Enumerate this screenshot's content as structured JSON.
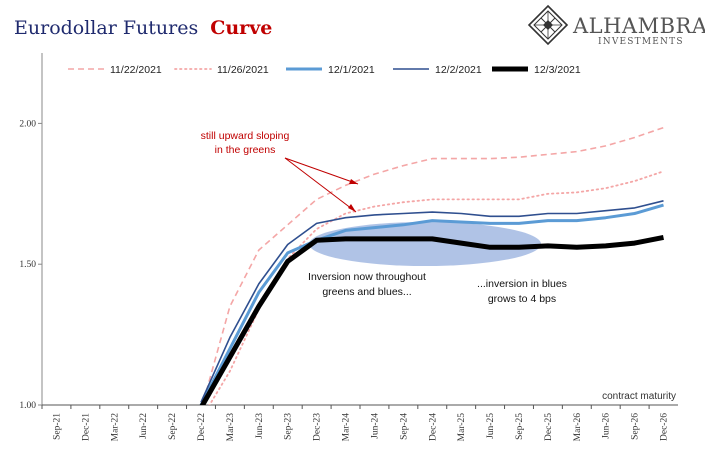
{
  "brand": {
    "name": "ALHAMBRA",
    "tagline": "INVESTMENTS",
    "logo_icon": "diamond-lattice-icon"
  },
  "chart_data": {
    "type": "line",
    "title": "Eurodollar Futures",
    "title_accent": "Curve",
    "xlabel": "contract maturity",
    "ylabel": "",
    "ylim": [
      1.0,
      2.25
    ],
    "yticks": [
      1.0,
      1.5,
      2.0
    ],
    "ytick_labels": [
      "1.00",
      "1.50",
      "2.00"
    ],
    "categories": [
      "Sep-21",
      "Dec-21",
      "Mar-22",
      "Jun-22",
      "Sep-22",
      "Dec-22",
      "Mar-23",
      "Jun-23",
      "Sep-23",
      "Dec-23",
      "Mar-24",
      "Jun-24",
      "Sep-24",
      "Dec-24",
      "Mar-25",
      "Jun-25",
      "Sep-25",
      "Dec-25",
      "Mar-26",
      "Jun-26",
      "Sep-26",
      "Dec-26"
    ],
    "legend_position": "top",
    "series": [
      {
        "name": "11/22/2021",
        "color": "#f4a6a6",
        "style": "dashed",
        "width": 1.6,
        "values": [
          null,
          null,
          null,
          null,
          null,
          0.98,
          1.35,
          1.55,
          1.64,
          1.73,
          1.78,
          1.82,
          1.85,
          1.875,
          1.875,
          1.875,
          1.88,
          1.89,
          1.9,
          1.92,
          1.95,
          1.985
        ]
      },
      {
        "name": "11/26/2021",
        "color": "#f4a6a6",
        "style": "dotted",
        "width": 1.8,
        "values": [
          null,
          null,
          null,
          null,
          null,
          0.95,
          1.12,
          1.34,
          1.52,
          1.625,
          1.68,
          1.705,
          1.72,
          1.73,
          1.73,
          1.73,
          1.73,
          1.75,
          1.755,
          1.77,
          1.795,
          1.83
        ]
      },
      {
        "name": "12/1/2021",
        "color": "#5b9bd5",
        "style": "solid",
        "width": 3,
        "values": [
          null,
          null,
          null,
          null,
          null,
          1.0,
          1.2,
          1.4,
          1.54,
          1.585,
          1.62,
          1.63,
          1.64,
          1.655,
          1.65,
          1.645,
          1.645,
          1.655,
          1.655,
          1.665,
          1.68,
          1.71
        ]
      },
      {
        "name": "12/2/2021",
        "color": "#2f4f8f",
        "style": "solid",
        "width": 1.6,
        "values": [
          null,
          null,
          null,
          null,
          null,
          1.01,
          1.24,
          1.43,
          1.57,
          1.645,
          1.665,
          1.675,
          1.68,
          1.685,
          1.68,
          1.67,
          1.67,
          1.68,
          1.68,
          1.69,
          1.7,
          1.725
        ]
      },
      {
        "name": "12/3/2021",
        "color": "#000000",
        "style": "solid",
        "width": 5,
        "values": [
          null,
          null,
          null,
          null,
          null,
          0.99,
          1.17,
          1.35,
          1.51,
          1.585,
          1.59,
          1.59,
          1.59,
          1.59,
          1.575,
          1.56,
          1.56,
          1.565,
          1.56,
          1.565,
          1.575,
          1.595
        ]
      }
    ],
    "annotations": {
      "greens": "still upward sloping in the greens",
      "inversion": "Inversion now throughout greens and blues...",
      "blues": "...inversion in blues grows to 4 bps"
    }
  }
}
